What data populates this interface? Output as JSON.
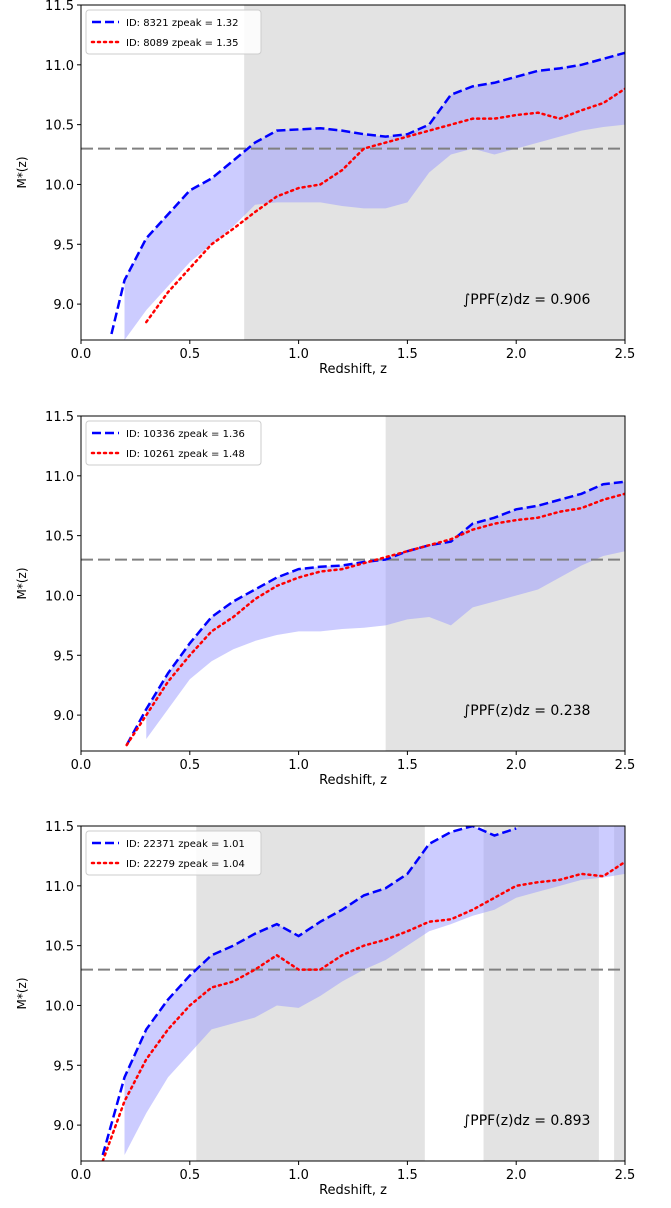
{
  "chart_data": [
    {
      "type": "line",
      "xlabel": "Redshift, z",
      "ylabel": "M*(z)",
      "annotation": "∫PPF(z)dz = 0.906",
      "hline": 10.3,
      "xlim": [
        0,
        2.5
      ],
      "ylim": [
        8.7,
        11.5
      ],
      "xticks": [
        {
          "value": 0,
          "label": "0.0"
        },
        0.5,
        {
          "value": 1,
          "label": "1.0"
        },
        1.5,
        {
          "value": 2,
          "label": "2.0"
        },
        2.5
      ],
      "yticks": [
        {
          "value": 9,
          "label": "9.0"
        },
        9.5,
        {
          "value": 10,
          "label": "10.0"
        },
        10.5,
        {
          "value": 11,
          "label": "11.0"
        },
        11.5
      ],
      "shaded": [
        [
          0.75,
          2.5
        ]
      ],
      "x": [
        0.14,
        0.2,
        0.3,
        0.4,
        0.5,
        0.6,
        0.7,
        0.8,
        0.9,
        1.0,
        1.1,
        1.2,
        1.3,
        1.4,
        1.5,
        1.6,
        1.7,
        1.8,
        1.9,
        2.0,
        2.1,
        2.2,
        2.3,
        2.4,
        2.5
      ],
      "band": {
        "color": "#9999ff",
        "lower": [
          null,
          8.7,
          8.95,
          9.15,
          9.35,
          9.5,
          9.65,
          9.83,
          9.85,
          9.85,
          9.85,
          9.82,
          9.8,
          9.8,
          9.85,
          10.1,
          10.25,
          10.3,
          10.25,
          10.3,
          10.35,
          10.4,
          10.45,
          10.48,
          10.5
        ],
        "upper": [
          8.75,
          9.2,
          9.55,
          9.75,
          9.95,
          10.05,
          10.2,
          10.35,
          10.45,
          10.46,
          10.47,
          10.45,
          10.42,
          10.4,
          10.42,
          10.5,
          10.75,
          10.82,
          10.85,
          10.9,
          10.95,
          10.97,
          11.0,
          11.05,
          11.1
        ]
      },
      "series": [
        {
          "name": "ID: 8321 zpeak = 1.32",
          "color": "#0000ff",
          "style": "dashed",
          "values": [
            8.75,
            9.2,
            9.55,
            9.75,
            9.95,
            10.05,
            10.2,
            10.35,
            10.45,
            10.46,
            10.47,
            10.45,
            10.42,
            10.4,
            10.42,
            10.5,
            10.75,
            10.82,
            10.85,
            10.9,
            10.95,
            10.97,
            11.0,
            11.05,
            11.1
          ]
        },
        {
          "name": "ID: 8089 zpeak = 1.35",
          "color": "#ff0000",
          "style": "dotted",
          "values": [
            null,
            null,
            8.85,
            9.1,
            9.3,
            9.5,
            9.63,
            9.77,
            9.9,
            9.97,
            10.0,
            10.12,
            10.3,
            10.35,
            10.4,
            10.45,
            10.5,
            10.55,
            10.55,
            10.58,
            10.6,
            10.55,
            10.62,
            10.68,
            10.8
          ]
        }
      ]
    },
    {
      "type": "line",
      "xlabel": "Redshift, z",
      "ylabel": "M*(z)",
      "annotation": "∫PPF(z)dz = 0.238",
      "hline": 10.3,
      "xlim": [
        0,
        2.5
      ],
      "ylim": [
        8.7,
        11.5
      ],
      "xticks": [
        {
          "value": 0,
          "label": "0.0"
        },
        0.5,
        {
          "value": 1,
          "label": "1.0"
        },
        1.5,
        {
          "value": 2,
          "label": "2.0"
        },
        2.5
      ],
      "yticks": [
        {
          "value": 9,
          "label": "9.0"
        },
        9.5,
        {
          "value": 10,
          "label": "10.0"
        },
        10.5,
        {
          "value": 11,
          "label": "11.0"
        },
        11.5
      ],
      "shaded": [
        [
          1.4,
          2.5
        ]
      ],
      "x": [
        0.21,
        0.3,
        0.4,
        0.5,
        0.6,
        0.7,
        0.8,
        0.9,
        1.0,
        1.1,
        1.2,
        1.3,
        1.4,
        1.5,
        1.6,
        1.7,
        1.8,
        1.9,
        2.0,
        2.1,
        2.2,
        2.3,
        2.4,
        2.5
      ],
      "band": {
        "color": "#9999ff",
        "lower": [
          null,
          8.8,
          9.05,
          9.3,
          9.45,
          9.55,
          9.62,
          9.67,
          9.7,
          9.7,
          9.72,
          9.73,
          9.75,
          9.8,
          9.82,
          9.75,
          9.9,
          9.95,
          10.0,
          10.05,
          10.15,
          10.25,
          10.33,
          10.37
        ],
        "upper": [
          8.75,
          9.05,
          9.35,
          9.6,
          9.82,
          9.95,
          10.05,
          10.15,
          10.22,
          10.24,
          10.25,
          10.28,
          10.3,
          10.37,
          10.42,
          10.45,
          10.6,
          10.65,
          10.72,
          10.75,
          10.8,
          10.85,
          10.93,
          10.95
        ]
      },
      "series": [
        {
          "name": "ID: 10336 zpeak = 1.36",
          "color": "#0000ff",
          "style": "dashed",
          "values": [
            8.75,
            9.05,
            9.35,
            9.6,
            9.82,
            9.95,
            10.05,
            10.15,
            10.22,
            10.24,
            10.25,
            10.28,
            10.3,
            10.37,
            10.42,
            10.45,
            10.6,
            10.65,
            10.72,
            10.75,
            10.8,
            10.85,
            10.93,
            10.95
          ]
        },
        {
          "name": "ID: 10261 zpeak = 1.48",
          "color": "#ff0000",
          "style": "dotted",
          "values": [
            8.75,
            9.0,
            9.28,
            9.5,
            9.7,
            9.82,
            9.97,
            10.08,
            10.15,
            10.2,
            10.22,
            10.27,
            10.32,
            10.37,
            10.42,
            10.47,
            10.55,
            10.6,
            10.63,
            10.65,
            10.7,
            10.73,
            10.8,
            10.85
          ]
        }
      ]
    },
    {
      "type": "line",
      "xlabel": "Redshift, z",
      "ylabel": "M*(z)",
      "annotation": "∫PPF(z)dz = 0.893",
      "hline": 10.3,
      "xlim": [
        0,
        2.5
      ],
      "ylim": [
        8.7,
        11.5
      ],
      "xticks": [
        {
          "value": 0,
          "label": "0.0"
        },
        0.5,
        {
          "value": 1,
          "label": "1.0"
        },
        1.5,
        {
          "value": 2,
          "label": "2.0"
        },
        2.5
      ],
      "yticks": [
        {
          "value": 9,
          "label": "9.0"
        },
        9.5,
        {
          "value": 10,
          "label": "10.0"
        },
        10.5,
        {
          "value": 11,
          "label": "11.0"
        },
        11.5
      ],
      "shaded": [
        [
          0.53,
          1.58
        ],
        [
          1.85,
          2.38
        ],
        [
          2.45,
          2.5
        ]
      ],
      "x": [
        0.1,
        0.2,
        0.3,
        0.4,
        0.5,
        0.6,
        0.7,
        0.8,
        0.9,
        1.0,
        1.1,
        1.2,
        1.3,
        1.4,
        1.5,
        1.6,
        1.7,
        1.8,
        1.9,
        2.0,
        2.1,
        2.2,
        2.3,
        2.4,
        2.5
      ],
      "band": {
        "color": "#9999ff",
        "lower": [
          null,
          8.75,
          9.1,
          9.4,
          9.6,
          9.8,
          9.85,
          9.9,
          10.0,
          9.98,
          10.08,
          10.2,
          10.3,
          10.38,
          10.5,
          10.62,
          10.68,
          10.75,
          10.8,
          10.9,
          10.95,
          11.0,
          11.05,
          11.07,
          11.1
        ],
        "upper": [
          8.75,
          9.4,
          9.8,
          10.05,
          10.25,
          10.42,
          10.5,
          10.6,
          10.68,
          10.58,
          10.7,
          10.8,
          10.92,
          10.98,
          11.1,
          11.35,
          11.45,
          11.5,
          11.42,
          11.48,
          11.6,
          11.6,
          11.6,
          11.6,
          11.6
        ]
      },
      "series": [
        {
          "name": "ID: 22371 zpeak = 1.01",
          "color": "#0000ff",
          "style": "dashed",
          "values": [
            8.75,
            9.4,
            9.8,
            10.05,
            10.25,
            10.42,
            10.5,
            10.6,
            10.68,
            10.58,
            10.7,
            10.8,
            10.92,
            10.98,
            11.1,
            11.35,
            11.45,
            11.5,
            11.42,
            11.48,
            null,
            null,
            null,
            null,
            null
          ]
        },
        {
          "name": "ID: 22279 zpeak = 1.04",
          "color": "#ff0000",
          "style": "dotted",
          "values": [
            8.7,
            9.2,
            9.55,
            9.8,
            10.0,
            10.15,
            10.2,
            10.3,
            10.42,
            10.3,
            10.3,
            10.42,
            10.5,
            10.55,
            10.62,
            10.7,
            10.72,
            10.8,
            10.9,
            11.0,
            11.03,
            11.05,
            11.1,
            11.08,
            11.2
          ]
        }
      ]
    }
  ]
}
